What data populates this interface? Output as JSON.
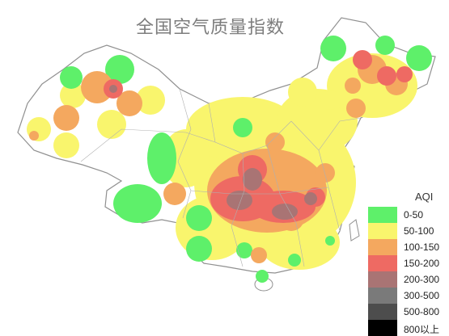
{
  "map": {
    "title": "全国空气质量指数",
    "colors": {
      "outline": "#909090",
      "land": "#ffffff",
      "aqi_0_50": "#5ef06a",
      "aqi_50_100": "#f9f56d",
      "aqi_100_150": "#f4a85f",
      "aqi_150_200": "#ee6a63",
      "aqi_200_300": "#a97474",
      "aqi_300_500": "#7a7a7a",
      "aqi_500_800": "#4d4d4d",
      "aqi_800_plus": "#000000"
    }
  },
  "legend": {
    "title": "AQI",
    "items": [
      {
        "label": "0-50",
        "color": "#5ef06a"
      },
      {
        "label": "50-100",
        "color": "#f9f56d"
      },
      {
        "label": "100-150",
        "color": "#f4a85f"
      },
      {
        "label": "150-200",
        "color": "#ee6a63"
      },
      {
        "label": "200-300",
        "color": "#a97474"
      },
      {
        "label": "300-500",
        "color": "#7a7a7a"
      },
      {
        "label": "500-800",
        "color": "#4d4d4d"
      },
      {
        "label": "800以上",
        "color": "#000000"
      }
    ]
  }
}
